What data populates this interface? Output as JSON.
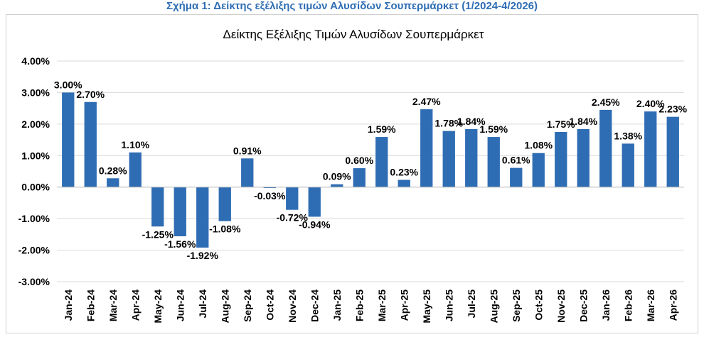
{
  "caption": "Σχήμα 1: Δείκτης εξέλιξης τιμών Αλυσίδων Σουπερμάρκετ (1/2024-4/2026)",
  "colors": {
    "bar": "#2E6DB4",
    "grid": "#d9d9d9",
    "caption": "#2E6DB4"
  },
  "chart_data": {
    "type": "bar",
    "title": "Δείκτης Εξέλιξης Τιμών Αλυσίδων Σουπερμάρκετ",
    "xlabel": "",
    "ylabel": "",
    "ylim": [
      -3,
      4
    ],
    "yticks": [
      4,
      3,
      2,
      1,
      0,
      -1,
      -2,
      -3
    ],
    "ytick_labels": [
      "4.00%",
      "3.00%",
      "2.00%",
      "1.00%",
      "0.00%",
      "-1.00%",
      "-2.00%",
      "-3.00%"
    ],
    "grid": true,
    "legend": "none",
    "categories": [
      "Jan-24",
      "Feb-24",
      "Mar-24",
      "Apr-24",
      "May-24",
      "Jun-24",
      "Jul-24",
      "Aug-24",
      "Sep-24",
      "Oct-24",
      "Nov-24",
      "Dec-24",
      "Jan-25",
      "Feb-25",
      "Mar-25",
      "Apr-25",
      "May-25",
      "Jun-25",
      "Jul-25",
      "Aug-25",
      "Sep-25",
      "Oct-25",
      "Nov-25",
      "Dec-25",
      "Jan-26",
      "Feb-26",
      "Mar-26",
      "Apr-26"
    ],
    "values": [
      3.0,
      2.7,
      0.28,
      1.1,
      -1.25,
      -1.56,
      -1.92,
      -1.08,
      0.91,
      -0.03,
      -0.72,
      -0.94,
      0.09,
      0.6,
      1.59,
      0.23,
      2.47,
      1.78,
      1.84,
      1.59,
      0.61,
      1.08,
      1.75,
      1.84,
      2.45,
      1.38,
      2.4,
      2.23
    ],
    "data_labels": [
      "3.00%",
      "2.70%",
      "0.28%",
      "1.10%",
      "-1.25%",
      "-1.56%",
      "-1.92%",
      "-1.08%",
      "0.91%",
      "-0.03%",
      "-0.72%",
      "-0.94%",
      "0.09%",
      "0.60%",
      "1.59%",
      "0.23%",
      "2.47%",
      "1.78%",
      "1.84%",
      "1.59%",
      "0.61%",
      "1.08%",
      "1.75%",
      "1.84%",
      "2.45%",
      "1.38%",
      "2.40%",
      "2.23%"
    ]
  }
}
